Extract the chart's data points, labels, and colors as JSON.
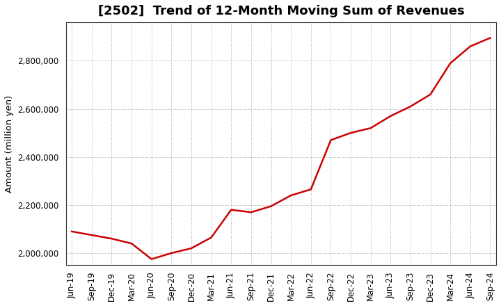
{
  "title": "[2502]  Trend of 12-Month Moving Sum of Revenues",
  "ylabel": "Amount (million yen)",
  "line_color": "#cc0000",
  "line_width": 1.8,
  "background_color": "#ffffff",
  "plot_bg_color": "#ffffff",
  "grid_color": "#999999",
  "x_labels": [
    "Jun-19",
    "Sep-19",
    "Dec-19",
    "Mar-20",
    "Jun-20",
    "Sep-20",
    "Dec-20",
    "Mar-21",
    "Jun-21",
    "Sep-21",
    "Dec-21",
    "Mar-22",
    "Jun-22",
    "Sep-22",
    "Dec-22",
    "Mar-23",
    "Jun-23",
    "Sep-23",
    "Dec-23",
    "Mar-24",
    "Jun-24",
    "Sep-24"
  ],
  "y_values": [
    2090000,
    2075000,
    2060000,
    2040000,
    1975000,
    2000000,
    2020000,
    2065000,
    2180000,
    2170000,
    2195000,
    2240000,
    2265000,
    2470000,
    2500000,
    2520000,
    2570000,
    2610000,
    2660000,
    2790000,
    2860000,
    2895000
  ],
  "ylim": [
    1950000,
    2960000
  ],
  "yticks": [
    2000000,
    2200000,
    2400000,
    2600000,
    2800000
  ],
  "title_fontsize": 13,
  "tick_fontsize": 8.5,
  "ylabel_fontsize": 9.5
}
